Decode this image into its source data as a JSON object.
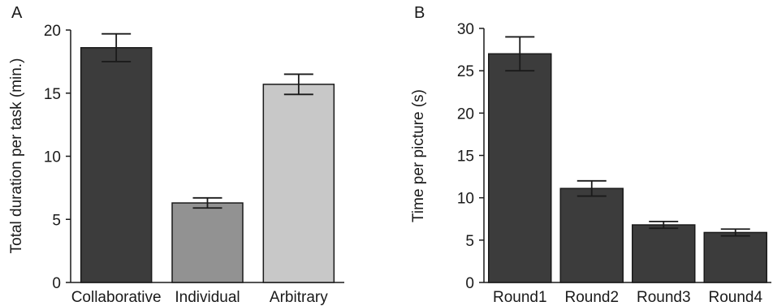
{
  "chart_data": [
    {
      "panel_label": "A",
      "type": "bar",
      "categories": [
        "Collaborative",
        "Individual",
        "Arbitrary"
      ],
      "values": [
        18.6,
        6.3,
        15.7
      ],
      "errors": [
        1.1,
        0.4,
        0.8
      ],
      "bar_colors": [
        "#3c3c3c",
        "#929292",
        "#c8c8c8"
      ],
      "xlabel": "",
      "ylabel": "Total duration per task (min.)",
      "ylim": [
        0,
        20
      ],
      "yticks": [
        0,
        5,
        10,
        15,
        20
      ],
      "grid": false,
      "legend": "none"
    },
    {
      "panel_label": "B",
      "type": "bar",
      "categories": [
        "Round1",
        "Round2",
        "Round3",
        "Round4"
      ],
      "values": [
        27.0,
        11.1,
        6.8,
        5.9
      ],
      "errors": [
        2.0,
        0.9,
        0.4,
        0.4
      ],
      "bar_colors": [
        "#3c3c3c",
        "#3c3c3c",
        "#3c3c3c",
        "#3c3c3c"
      ],
      "xlabel": "",
      "ylabel": "Time per picture (s)",
      "ylim": [
        0,
        30
      ],
      "yticks": [
        0,
        5,
        10,
        15,
        20,
        25,
        30
      ],
      "grid": false,
      "legend": "none"
    }
  ]
}
